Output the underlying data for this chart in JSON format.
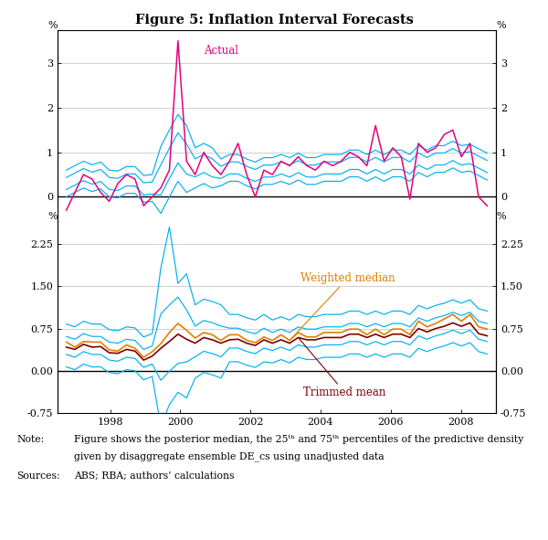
{
  "title": "Figure 5: Inflation Interval Forecasts",
  "background_color": "#ffffff",
  "top_panel": {
    "ylim": [
      -0.55,
      3.75
    ],
    "yticks": [
      0,
      1,
      2,
      3
    ],
    "actual_color": "#e6007e",
    "band_color": "#00b0f0",
    "zero_line_color": "#000000",
    "grid_color": "#c8c8c8",
    "label_actual": "Actual"
  },
  "bottom_panel": {
    "ylim": [
      -0.75,
      2.65
    ],
    "yticks": [
      -0.75,
      0.0,
      0.75,
      1.5,
      2.25
    ],
    "median_color": "#e08000",
    "trimmed_color": "#800000",
    "band_color": "#00b0f0",
    "zero_line_color": "#000000",
    "grid_color": "#c8c8c8",
    "label_median": "Weighted median",
    "label_trimmed": "Trimmed mean"
  },
  "xstart": 1996.5,
  "xend": 2009.0,
  "xticks": [
    1998,
    2000,
    2002,
    2004,
    2006,
    2008
  ],
  "xticklabels": [
    "1998",
    "2000",
    "2002",
    "2004",
    "2006",
    "2008"
  ]
}
